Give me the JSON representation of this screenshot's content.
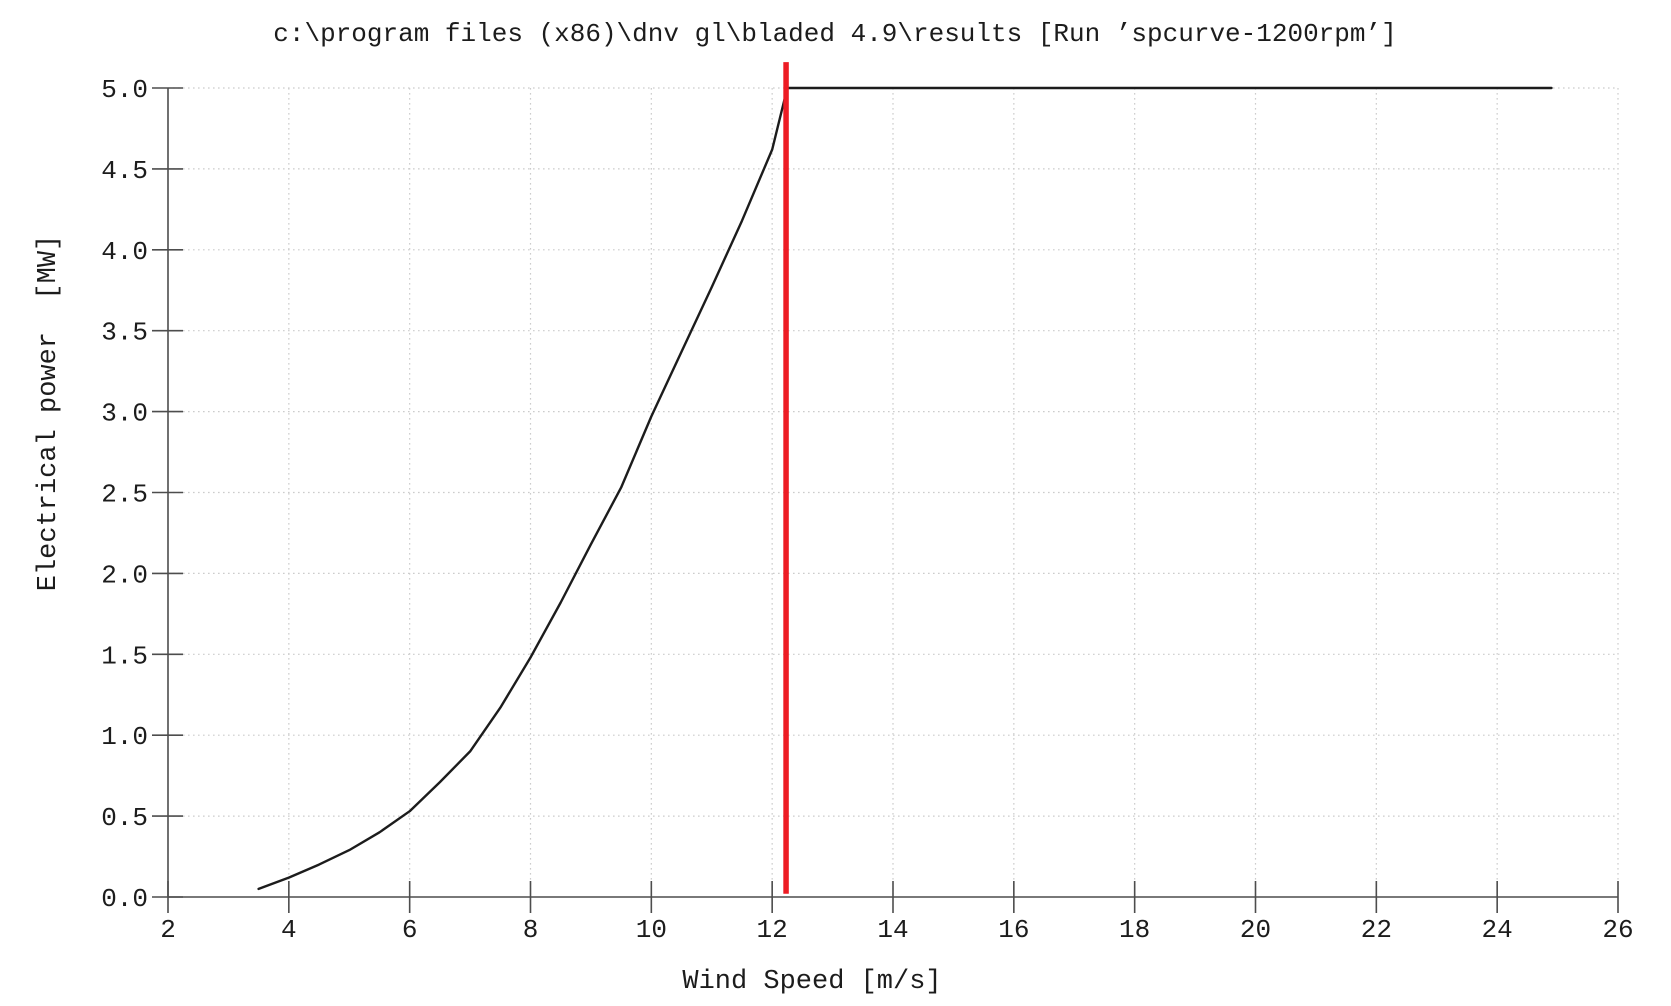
{
  "chart_data": {
    "type": "line",
    "title": "c:\\program files (x86)\\dnv gl\\bladed 4.9\\results [Run ’spcurve-1200rpm’]",
    "xlabel": "Wind Speed [m/s]",
    "ylabel": "Electrical power  [MW]",
    "xlim": [
      2,
      26
    ],
    "ylim": [
      0.0,
      5.0
    ],
    "x_ticks": [
      2,
      4,
      6,
      8,
      10,
      12,
      14,
      16,
      18,
      20,
      22,
      24,
      26
    ],
    "x_tick_labels": [
      "2",
      "4",
      "6",
      "8",
      "10",
      "12",
      "14",
      "16",
      "18",
      "20",
      "22",
      "24",
      "26"
    ],
    "y_ticks": [
      0.0,
      0.5,
      1.0,
      1.5,
      2.0,
      2.5,
      3.0,
      3.5,
      4.0,
      4.5,
      5.0
    ],
    "y_tick_labels": [
      "0.0",
      "0.5",
      "1.0",
      "1.5",
      "2.0",
      "2.5",
      "3.0",
      "3.5",
      "4.0",
      "4.5",
      "5.0"
    ],
    "grid": "dotted",
    "legend": "none",
    "series": [
      {
        "name": "electrical-power-curve",
        "color": "#1c1c1c",
        "points": [
          [
            3.5,
            0.05
          ],
          [
            4.0,
            0.12
          ],
          [
            4.5,
            0.2
          ],
          [
            5.0,
            0.29
          ],
          [
            5.5,
            0.4
          ],
          [
            6.0,
            0.53
          ],
          [
            6.5,
            0.71
          ],
          [
            7.0,
            0.9
          ],
          [
            7.5,
            1.17
          ],
          [
            8.0,
            1.48
          ],
          [
            8.5,
            1.82
          ],
          [
            9.0,
            2.18
          ],
          [
            9.5,
            2.53
          ],
          [
            10.0,
            2.97
          ],
          [
            10.5,
            3.37
          ],
          [
            11.0,
            3.77
          ],
          [
            11.5,
            4.18
          ],
          [
            12.0,
            4.62
          ],
          [
            12.25,
            5.0
          ],
          [
            24.9,
            5.0
          ]
        ]
      }
    ],
    "marker_line": {
      "name": "cutout-wind-speed-marker",
      "x": 12.23,
      "y_from": 0.02,
      "y_to": 5.16,
      "color": "#ed1c24"
    }
  },
  "colors": {
    "background": "#ffffff",
    "axis": "#4d4d4d",
    "grid": "#cccccc",
    "text": "#1c1c1c",
    "curve": "#1c1c1c",
    "marker": "#ed1c24"
  }
}
